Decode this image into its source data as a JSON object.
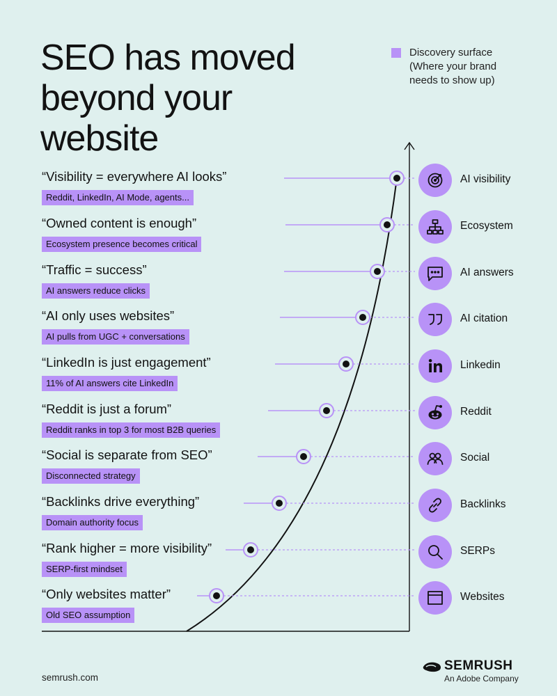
{
  "title": {
    "line1": "SEO has moved",
    "line2": "beyond your",
    "line3": "website"
  },
  "legend": {
    "line1": "Discovery surface",
    "line2": "(Where your brand",
    "line3": "needs to show up)",
    "color": "#b892f7"
  },
  "accent_color": "#b892f7",
  "rows": [
    {
      "myth": "“Visibility = everywhere AI looks”",
      "reality": "Reddit, LinkedIn, AI Mode, agents...",
      "surface": "AI visibility",
      "icon": "target-icon"
    },
    {
      "myth": "“Owned content is enough”",
      "reality": "Ecosystem presence becomes critical",
      "surface": "Ecosystem",
      "icon": "network-icon"
    },
    {
      "myth": "“Traffic = success”",
      "reality": "AI answers reduce clicks",
      "surface": "AI answers",
      "icon": "chat-icon"
    },
    {
      "myth": "“AI only uses websites”",
      "reality": "AI pulls from UGC + conversations",
      "surface": "AI citation",
      "icon": "quote-icon"
    },
    {
      "myth": "“LinkedIn is just engagement”",
      "reality": "11% of AI answers cite LinkedIn",
      "surface": "Linkedin",
      "icon": "linkedin-icon"
    },
    {
      "myth": "“Reddit is just a forum”",
      "reality": "Reddit ranks in top 3 for most B2B queries",
      "surface": "Reddit",
      "icon": "reddit-icon"
    },
    {
      "myth": "“Social is separate from SEO”",
      "reality": "Disconnected strategy",
      "surface": "Social",
      "icon": "people-icon"
    },
    {
      "myth": "“Backlinks drive everything”",
      "reality": "Domain authority focus",
      "surface": "Backlinks",
      "icon": "link-icon"
    },
    {
      "myth": "“Rank higher = more visibility”",
      "reality": "SERP-first mindset",
      "surface": "SERPs",
      "icon": "search-icon"
    },
    {
      "myth": "“Only websites matter”",
      "reality": "Old SEO assumption",
      "surface": "Websites",
      "icon": "browser-window-icon"
    }
  ],
  "footer": {
    "url": "semrush.com",
    "brand": "SEMRUSH",
    "brand_sub": "An Adobe Company"
  }
}
